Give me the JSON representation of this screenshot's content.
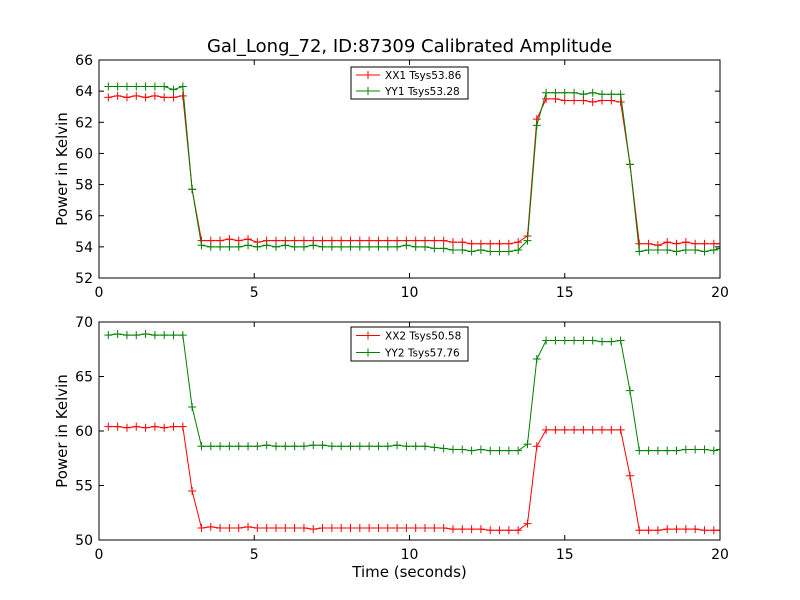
{
  "chart_data": [
    {
      "type": "line",
      "title": "Gal_Long_72, ID:87309 Calibrated Amplitude",
      "xlabel": "",
      "ylabel": "Power in Kelvin",
      "xlim": [
        0,
        20
      ],
      "ylim": [
        52,
        66
      ],
      "xticks": [
        0,
        5,
        10,
        15,
        20
      ],
      "yticks": [
        52,
        54,
        56,
        58,
        60,
        62,
        64,
        66
      ],
      "grid": false,
      "legend_position": "top-center",
      "x": [
        0.3,
        0.6,
        0.9,
        1.2,
        1.5,
        1.8,
        2.1,
        2.4,
        2.7,
        3.0,
        3.3,
        3.6,
        3.9,
        4.2,
        4.5,
        4.8,
        5.1,
        5.4,
        5.7,
        6.0,
        6.3,
        6.6,
        6.9,
        7.2,
        7.5,
        7.8,
        8.1,
        8.4,
        8.7,
        9.0,
        9.3,
        9.6,
        9.9,
        10.2,
        10.5,
        10.8,
        11.1,
        11.4,
        11.7,
        12.0,
        12.3,
        12.6,
        12.9,
        13.2,
        13.5,
        13.8,
        14.1,
        14.4,
        14.7,
        15.0,
        15.3,
        15.6,
        15.9,
        16.2,
        16.5,
        16.8,
        17.1,
        17.4,
        17.7,
        18.0,
        18.3,
        18.6,
        18.9,
        19.2,
        19.5,
        19.8,
        20.0
      ],
      "series": [
        {
          "name": "XX1 Tsys53.86",
          "color": "#ff0000",
          "values": [
            63.6,
            63.7,
            63.6,
            63.7,
            63.6,
            63.7,
            63.6,
            63.6,
            63.7,
            57.7,
            54.4,
            54.4,
            54.4,
            54.5,
            54.4,
            54.5,
            54.3,
            54.4,
            54.4,
            54.4,
            54.4,
            54.4,
            54.4,
            54.4,
            54.4,
            54.4,
            54.4,
            54.4,
            54.4,
            54.4,
            54.4,
            54.4,
            54.4,
            54.4,
            54.4,
            54.4,
            54.4,
            54.3,
            54.3,
            54.2,
            54.2,
            54.2,
            54.2,
            54.2,
            54.3,
            54.7,
            62.2,
            63.5,
            63.5,
            63.4,
            63.4,
            63.4,
            63.3,
            63.4,
            63.4,
            63.3,
            59.3,
            54.2,
            54.2,
            54.1,
            54.3,
            54.2,
            54.3,
            54.2,
            54.2,
            54.2,
            54.2
          ]
        },
        {
          "name": "YY1 Tsys53.28",
          "color": "#008000",
          "values": [
            64.3,
            64.3,
            64.3,
            64.3,
            64.3,
            64.3,
            64.3,
            64.1,
            64.3,
            57.7,
            54.1,
            54.0,
            54.0,
            54.0,
            54.0,
            54.1,
            54.0,
            54.1,
            54.0,
            54.1,
            54.0,
            54.0,
            54.1,
            54.0,
            54.0,
            54.0,
            54.0,
            54.0,
            54.0,
            54.0,
            54.0,
            54.0,
            54.1,
            54.0,
            54.0,
            53.9,
            53.9,
            53.8,
            53.8,
            53.7,
            53.8,
            53.7,
            53.7,
            53.7,
            53.8,
            54.4,
            61.8,
            63.9,
            63.9,
            63.9,
            63.9,
            63.8,
            63.9,
            63.8,
            63.8,
            63.8,
            59.3,
            53.7,
            53.8,
            53.8,
            53.8,
            53.7,
            53.8,
            53.8,
            53.7,
            53.8,
            53.9
          ]
        }
      ]
    },
    {
      "type": "line",
      "title": "",
      "xlabel": "Time (seconds)",
      "ylabel": "Power in Kelvin",
      "xlim": [
        0,
        20
      ],
      "ylim": [
        50,
        70
      ],
      "xticks": [
        0,
        5,
        10,
        15,
        20
      ],
      "yticks": [
        50,
        55,
        60,
        65,
        70
      ],
      "grid": false,
      "legend_position": "top-center",
      "x": [
        0.3,
        0.6,
        0.9,
        1.2,
        1.5,
        1.8,
        2.1,
        2.4,
        2.7,
        3.0,
        3.3,
        3.6,
        3.9,
        4.2,
        4.5,
        4.8,
        5.1,
        5.4,
        5.7,
        6.0,
        6.3,
        6.6,
        6.9,
        7.2,
        7.5,
        7.8,
        8.1,
        8.4,
        8.7,
        9.0,
        9.3,
        9.6,
        9.9,
        10.2,
        10.5,
        10.8,
        11.1,
        11.4,
        11.7,
        12.0,
        12.3,
        12.6,
        12.9,
        13.2,
        13.5,
        13.8,
        14.1,
        14.4,
        14.7,
        15.0,
        15.3,
        15.6,
        15.9,
        16.2,
        16.5,
        16.8,
        17.1,
        17.4,
        17.7,
        18.0,
        18.3,
        18.6,
        18.9,
        19.2,
        19.5,
        19.8,
        20.0
      ],
      "series": [
        {
          "name": "XX2 Tsys50.58",
          "color": "#ff0000",
          "values": [
            60.4,
            60.4,
            60.3,
            60.4,
            60.3,
            60.4,
            60.3,
            60.4,
            60.4,
            54.5,
            51.1,
            51.2,
            51.1,
            51.1,
            51.1,
            51.2,
            51.1,
            51.1,
            51.1,
            51.1,
            51.1,
            51.1,
            51.0,
            51.1,
            51.1,
            51.1,
            51.1,
            51.1,
            51.1,
            51.1,
            51.1,
            51.1,
            51.1,
            51.1,
            51.1,
            51.1,
            51.1,
            51.0,
            51.0,
            51.0,
            51.0,
            50.9,
            50.9,
            50.9,
            50.9,
            51.5,
            58.6,
            60.1,
            60.1,
            60.1,
            60.1,
            60.1,
            60.1,
            60.1,
            60.1,
            60.1,
            55.9,
            50.9,
            50.9,
            50.9,
            51.0,
            51.0,
            51.0,
            51.0,
            50.9,
            50.9,
            50.9
          ]
        },
        {
          "name": "YY2 Tsys57.76",
          "color": "#008000",
          "values": [
            68.8,
            68.9,
            68.8,
            68.8,
            68.9,
            68.8,
            68.8,
            68.8,
            68.8,
            62.2,
            58.6,
            58.6,
            58.6,
            58.6,
            58.6,
            58.6,
            58.6,
            58.7,
            58.6,
            58.6,
            58.6,
            58.6,
            58.7,
            58.7,
            58.6,
            58.6,
            58.6,
            58.6,
            58.6,
            58.6,
            58.6,
            58.7,
            58.6,
            58.6,
            58.6,
            58.5,
            58.4,
            58.3,
            58.3,
            58.2,
            58.3,
            58.2,
            58.2,
            58.2,
            58.2,
            58.8,
            66.6,
            68.3,
            68.3,
            68.3,
            68.3,
            68.3,
            68.3,
            68.2,
            68.2,
            68.3,
            63.7,
            58.2,
            58.2,
            58.2,
            58.2,
            58.2,
            58.3,
            58.3,
            58.3,
            58.2,
            58.3
          ]
        }
      ]
    }
  ]
}
